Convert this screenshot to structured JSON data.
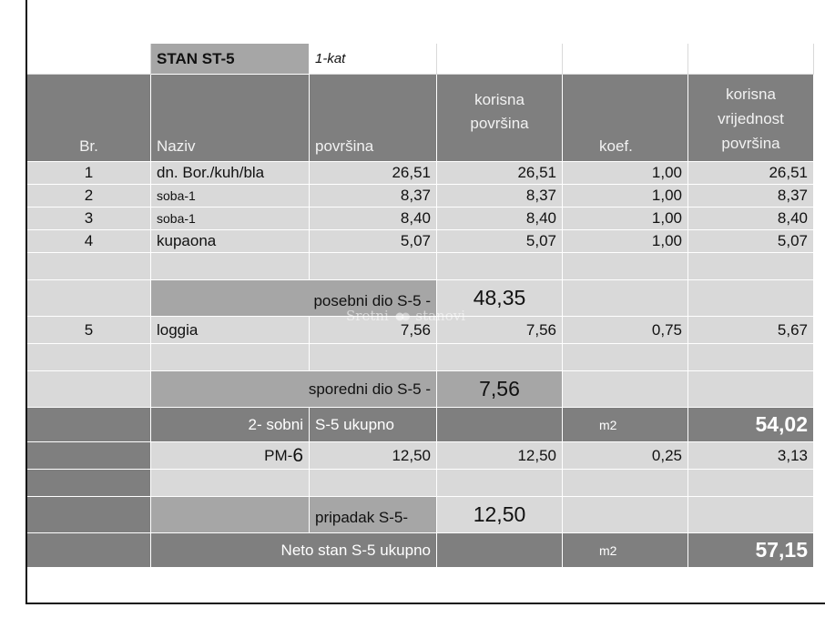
{
  "title": {
    "name": "STAN ST-5",
    "floor": "1-kat"
  },
  "headers": {
    "br": "Br.",
    "naziv": "Naziv",
    "povrsina": "površina",
    "korisna_1": "korisna",
    "korisna_2": "površina",
    "koef": "koef.",
    "kvp_1": "korisna",
    "kvp_2": "vrijednost",
    "kvp_3": "površina"
  },
  "rooms": [
    {
      "br": "1",
      "naziv": "dn. Bor./kuh/bla",
      "povrsina": "26,51",
      "korisna": "26,51",
      "koef": "1,00",
      "vrijednost": "26,51"
    },
    {
      "br": "2",
      "naziv": "soba-1",
      "povrsina": "8,37",
      "korisna": "8,37",
      "koef": "1,00",
      "vrijednost": "8,37"
    },
    {
      "br": "3",
      "naziv": "soba-1",
      "povrsina": "8,40",
      "korisna": "8,40",
      "koef": "1,00",
      "vrijednost": "8,40"
    },
    {
      "br": "4",
      "naziv": "kupaona",
      "povrsina": "5,07",
      "korisna": "5,07",
      "koef": "1,00",
      "vrijednost": "5,07"
    }
  ],
  "posebni": {
    "label": "posebni dio S-5 -",
    "value": "48,35"
  },
  "loggia": {
    "br": "5",
    "naziv": "loggia",
    "povrsina": "7,56",
    "korisna": "7,56",
    "koef": "0,75",
    "vrijednost": "5,67"
  },
  "sporedni": {
    "label": "sporedni dio S-5 -",
    "value": "7,56"
  },
  "ukupno": {
    "sobe": "2- sobni",
    "label": "S-5 ukupno",
    "unit": "m2",
    "value": "54,02"
  },
  "pm": {
    "naziv_prefix": "PM-",
    "naziv_num": "6",
    "povrsina": "12,50",
    "korisna": "12,50",
    "koef": "0,25",
    "vrijednost": "3,13"
  },
  "pripadak": {
    "label": "pripadak S-5-",
    "value": "12,50"
  },
  "neto": {
    "label": "Neto stan S-5 ukupno",
    "unit": "m2",
    "value": "57,15"
  },
  "watermark": {
    "left": "Sretni",
    "right": "stanovi"
  }
}
